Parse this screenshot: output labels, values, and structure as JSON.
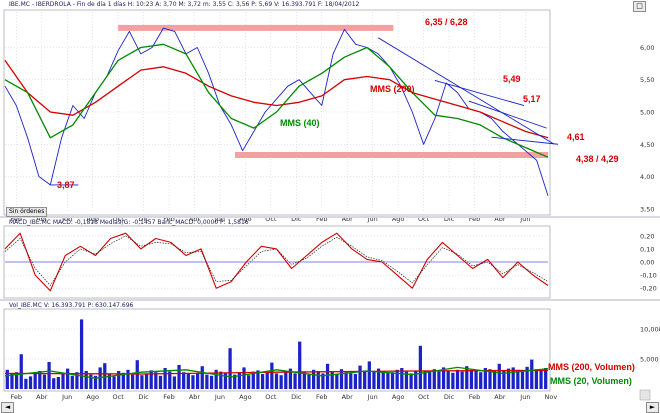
{
  "colors": {
    "price": "#1a22c8",
    "ma200": "#d40000",
    "ma40": "#008a00",
    "band": "#f4a0a0",
    "trend": "#1a22c8",
    "macd": "#d40000",
    "signal": "#202020",
    "zero": "#5a5ad8",
    "volume": "#1a22c8",
    "vol_ma200": "#d40000",
    "vol_ma20": "#008a00",
    "label_red": "#d40000",
    "label_green": "#008a00",
    "grid": "#c8c8ec"
  },
  "icons": {
    "top_right": "box-icon",
    "chart_corner": "resize-grip-icon",
    "scroll_left": "arrow-left-icon",
    "scroll_right": "arrow-right-icon"
  },
  "panels": {
    "price": {
      "header": "IBE.MC - IBERDROLA - Fin de día 1 días  H: 10:23  A: 3,70  M: 3,72  m: 3,55  C: 3,56  P: 5,69  V: 16.393.791  F: 18/04/2012",
      "button": "Sin órdenes"
    },
    "macd": {
      "header": "MACD_IBE.MC  MACD: -0,1818  Media9/G: -0,1457  Banc_MACD: 0,0000  P: 1,5816"
    },
    "volume": {
      "header": "Vol_IBE.MC  V: 16.393.791  P: 630.147.696"
    }
  },
  "chart_data": [
    {
      "type": "line",
      "panel": "price",
      "x_axis_labels": [
        "Feb",
        "Abr",
        "Jun",
        "Ago",
        "Oct",
        "Dic",
        "Feb",
        "Abr",
        "Jun",
        "Ago",
        "Oct",
        "Dic",
        "Feb",
        "Abr",
        "Jun",
        "Ago",
        "Oct",
        "Dic",
        "Feb",
        "Abr",
        "Jun",
        "Nov"
      ],
      "y_ticks": [
        "4,00",
        "4,50",
        "5,00",
        "5,50",
        "6,00"
      ],
      "extra_ticks": [
        "3,50"
      ],
      "ylim": [
        3.45,
        6.55
      ],
      "series": [
        {
          "name": "",
          "role": "price",
          "points": [
            [
              0,
              5.4
            ],
            [
              6,
              5.1
            ],
            [
              12,
              4.6
            ],
            [
              18,
              4.0
            ],
            [
              24,
              3.87
            ],
            [
              30,
              4.6
            ],
            [
              36,
              5.1
            ],
            [
              42,
              4.9
            ],
            [
              48,
              5.3
            ],
            [
              54,
              5.55
            ],
            [
              60,
              5.95
            ],
            [
              66,
              6.25
            ],
            [
              72,
              5.9
            ],
            [
              78,
              6.0
            ],
            [
              84,
              6.3
            ],
            [
              90,
              6.25
            ],
            [
              96,
              5.9
            ],
            [
              102,
              6.0
            ],
            [
              108,
              5.6
            ],
            [
              114,
              5.1
            ],
            [
              120,
              4.8
            ],
            [
              126,
              4.4
            ],
            [
              132,
              4.7
            ],
            [
              138,
              5.0
            ],
            [
              144,
              5.2
            ],
            [
              150,
              5.4
            ],
            [
              156,
              5.5
            ],
            [
              162,
              5.3
            ],
            [
              168,
              5.1
            ],
            [
              174,
              5.9
            ],
            [
              180,
              6.28
            ],
            [
              186,
              6.05
            ],
            [
              192,
              6.0
            ],
            [
              198,
              5.9
            ],
            [
              204,
              5.7
            ],
            [
              210,
              5.4
            ],
            [
              216,
              5.0
            ],
            [
              222,
              4.5
            ],
            [
              228,
              4.9
            ],
            [
              234,
              5.45
            ],
            [
              240,
              5.3
            ],
            [
              246,
              5.05
            ],
            [
              252,
              5.0
            ],
            [
              258,
              4.9
            ],
            [
              264,
              4.7
            ],
            [
              270,
              4.55
            ],
            [
              276,
              4.4
            ],
            [
              282,
              4.25
            ],
            [
              288,
              3.7
            ]
          ]
        },
        {
          "name": "MMS (200)",
          "role": "ma200",
          "points": [
            [
              0,
              5.8
            ],
            [
              12,
              5.3
            ],
            [
              24,
              5.0
            ],
            [
              36,
              4.95
            ],
            [
              48,
              5.15
            ],
            [
              60,
              5.4
            ],
            [
              72,
              5.65
            ],
            [
              84,
              5.7
            ],
            [
              96,
              5.6
            ],
            [
              108,
              5.4
            ],
            [
              120,
              5.25
            ],
            [
              132,
              5.15
            ],
            [
              144,
              5.1
            ],
            [
              156,
              5.15
            ],
            [
              168,
              5.25
            ],
            [
              180,
              5.5
            ],
            [
              192,
              5.55
            ],
            [
              204,
              5.5
            ],
            [
              216,
              5.3
            ],
            [
              228,
              5.2
            ],
            [
              240,
              5.1
            ],
            [
              252,
              5.0
            ],
            [
              264,
              4.85
            ],
            [
              276,
              4.7
            ],
            [
              288,
              4.6
            ]
          ]
        },
        {
          "name": "MMS (40)",
          "role": "ma40",
          "points": [
            [
              0,
              5.5
            ],
            [
              12,
              5.3
            ],
            [
              24,
              4.6
            ],
            [
              36,
              4.8
            ],
            [
              48,
              5.3
            ],
            [
              60,
              5.8
            ],
            [
              72,
              6.0
            ],
            [
              84,
              6.05
            ],
            [
              96,
              5.9
            ],
            [
              108,
              5.3
            ],
            [
              120,
              4.9
            ],
            [
              132,
              4.75
            ],
            [
              144,
              5.0
            ],
            [
              156,
              5.4
            ],
            [
              168,
              5.6
            ],
            [
              180,
              5.85
            ],
            [
              192,
              6.0
            ],
            [
              204,
              5.7
            ],
            [
              216,
              5.3
            ],
            [
              228,
              4.95
            ],
            [
              240,
              4.9
            ],
            [
              252,
              4.8
            ],
            [
              264,
              4.6
            ],
            [
              276,
              4.45
            ],
            [
              288,
              4.3
            ]
          ]
        }
      ],
      "bands": [
        {
          "label": "6,35 / 6,28",
          "y_top": 6.35,
          "y_bottom": 6.28,
          "x_start": 60,
          "x_end": 206
        },
        {
          "label": "4,38 / 4,29",
          "y_top": 4.38,
          "y_bottom": 4.29,
          "x_start": 122,
          "x_end": 288
        }
      ],
      "trendlines": [
        {
          "x0": 198,
          "y0": 6.15,
          "x1": 286,
          "y1": 4.5
        },
        {
          "x0": 228,
          "y0": 5.49,
          "x1": 270,
          "y1": 5.1
        },
        {
          "x0": 246,
          "y0": 5.17,
          "x1": 282,
          "y1": 4.75
        },
        {
          "x0": 258,
          "y0": 4.61,
          "x1": 288,
          "y1": 4.5
        }
      ],
      "annotations": [
        {
          "text": "3,87",
          "color": "label_red"
        },
        {
          "text": "MMS (40)",
          "color": "label_green"
        },
        {
          "text": "MMS (200)",
          "color": "label_red"
        },
        {
          "text": "5,49",
          "color": "label_red"
        },
        {
          "text": "5,17",
          "color": "label_red"
        },
        {
          "text": "4,61",
          "color": "label_red"
        }
      ]
    },
    {
      "type": "line",
      "panel": "macd",
      "y_ticks": [
        "0,20",
        "0,10",
        "0,00",
        "-0,10",
        "-0,20"
      ],
      "ylim": [
        -0.26,
        0.26
      ],
      "series": [
        {
          "name": "",
          "role": "macd",
          "points": [
            [
              0,
              0.1
            ],
            [
              8,
              0.22
            ],
            [
              16,
              -0.1
            ],
            [
              24,
              -0.22
            ],
            [
              32,
              0.05
            ],
            [
              40,
              0.12
            ],
            [
              48,
              0.05
            ],
            [
              56,
              0.18
            ],
            [
              64,
              0.22
            ],
            [
              72,
              0.1
            ],
            [
              80,
              0.18
            ],
            [
              88,
              0.15
            ],
            [
              96,
              0.05
            ],
            [
              104,
              0.1
            ],
            [
              112,
              -0.2
            ],
            [
              120,
              -0.15
            ],
            [
              128,
              0.0
            ],
            [
              136,
              0.12
            ],
            [
              144,
              0.1
            ],
            [
              152,
              -0.05
            ],
            [
              160,
              0.05
            ],
            [
              168,
              0.15
            ],
            [
              176,
              0.22
            ],
            [
              184,
              0.1
            ],
            [
              192,
              0.02
            ],
            [
              200,
              0.0
            ],
            [
              208,
              -0.1
            ],
            [
              216,
              -0.2
            ],
            [
              224,
              0.02
            ],
            [
              232,
              0.15
            ],
            [
              240,
              0.05
            ],
            [
              248,
              -0.05
            ],
            [
              256,
              0.02
            ],
            [
              264,
              -0.12
            ],
            [
              272,
              0.0
            ],
            [
              280,
              -0.1
            ],
            [
              288,
              -0.18
            ]
          ]
        },
        {
          "name": "",
          "role": "signal",
          "points": [
            [
              0,
              0.08
            ],
            [
              8,
              0.18
            ],
            [
              16,
              -0.05
            ],
            [
              24,
              -0.18
            ],
            [
              32,
              0.0
            ],
            [
              40,
              0.1
            ],
            [
              48,
              0.06
            ],
            [
              56,
              0.14
            ],
            [
              64,
              0.2
            ],
            [
              72,
              0.12
            ],
            [
              80,
              0.15
            ],
            [
              88,
              0.14
            ],
            [
              96,
              0.07
            ],
            [
              104,
              0.08
            ],
            [
              112,
              -0.15
            ],
            [
              120,
              -0.14
            ],
            [
              128,
              -0.03
            ],
            [
              136,
              0.08
            ],
            [
              144,
              0.1
            ],
            [
              152,
              -0.02
            ],
            [
              160,
              0.03
            ],
            [
              168,
              0.12
            ],
            [
              176,
              0.19
            ],
            [
              184,
              0.12
            ],
            [
              192,
              0.04
            ],
            [
              200,
              0.01
            ],
            [
              208,
              -0.07
            ],
            [
              216,
              -0.16
            ],
            [
              224,
              -0.02
            ],
            [
              232,
              0.11
            ],
            [
              240,
              0.06
            ],
            [
              248,
              -0.03
            ],
            [
              256,
              0.0
            ],
            [
              264,
              -0.09
            ],
            [
              272,
              -0.02
            ],
            [
              280,
              -0.08
            ],
            [
              288,
              -0.15
            ]
          ]
        }
      ]
    },
    {
      "type": "bar",
      "panel": "volume",
      "y_ticks": [
        "10,000",
        "5,000"
      ],
      "ylim": [
        0,
        13
      ],
      "x_axis_labels": [
        "Feb",
        "Abr",
        "Jun",
        "Ago",
        "Oct",
        "Dic",
        "Feb",
        "Abr",
        "Jun",
        "Ago",
        "Oct",
        "Dic",
        "Feb",
        "Abr",
        "Jun",
        "Ago",
        "Oct",
        "Dic",
        "Feb",
        "Abr",
        "Jun",
        "Nov"
      ],
      "series": [
        {
          "name": "MMS (200, Volumen)",
          "role": "vol_ma200",
          "points": [
            [
              0,
              2.6
            ],
            [
              72,
              2.5
            ],
            [
              144,
              2.8
            ],
            [
              216,
              3.0
            ],
            [
              288,
              3.1
            ]
          ]
        },
        {
          "name": "MMS (20, Volumen)",
          "role": "vol_ma20",
          "points": [
            [
              0,
              2.2
            ],
            [
              24,
              3.0
            ],
            [
              48,
              1.8
            ],
            [
              72,
              2.8
            ],
            [
              96,
              3.2
            ],
            [
              120,
              2.0
            ],
            [
              144,
              3.2
            ],
            [
              168,
              2.2
            ],
            [
              192,
              3.0
            ],
            [
              216,
              2.4
            ],
            [
              240,
              3.6
            ],
            [
              264,
              2.6
            ],
            [
              288,
              3.4
            ]
          ]
        }
      ],
      "bar_heights": [
        3.2,
        2.5,
        2.8,
        5.8,
        1.7,
        2.1,
        2.8,
        3.0,
        2.4,
        4.5,
        1.8,
        2.0,
        2.6,
        3.4,
        2.2,
        2.8,
        11.6,
        3.0,
        2.4,
        2.2,
        3.6,
        4.3,
        2.5,
        2.1,
        3.0,
        2.7,
        3.2,
        2.4,
        4.8,
        2.3,
        2.6,
        3.1,
        2.8,
        2.2,
        3.5,
        2.9,
        2.1,
        4.0,
        2.8,
        2.5,
        2.3,
        2.6,
        3.8,
        2.4,
        2.2,
        3.2,
        2.9,
        2.6,
        6.8,
        2.4,
        2.8,
        3.6,
        2.3,
        2.9,
        3.1,
        2.5,
        2.8,
        4.4,
        2.6,
        2.3,
        2.9,
        3.4,
        2.6,
        7.9,
        2.8,
        2.4,
        3.2,
        3.0,
        2.6,
        4.2,
        2.9,
        2.5,
        3.3,
        2.8,
        2.6,
        2.5,
        3.9,
        3.1,
        4.6,
        2.9,
        3.4,
        3.0,
        2.7,
        2.8,
        3.2,
        3.5,
        2.9,
        2.6,
        3.0,
        7.2,
        3.1,
        2.8,
        3.3,
        2.9,
        3.6,
        3.0,
        2.7,
        3.2,
        2.9,
        3.8,
        3.2,
        3.0,
        2.8,
        3.5,
        3.3,
        3.1,
        4.2,
        3.0,
        3.4,
        3.6,
        3.2,
        2.9,
        3.7,
        4.9,
        3.3,
        3.1,
        3.5
      ]
    }
  ]
}
